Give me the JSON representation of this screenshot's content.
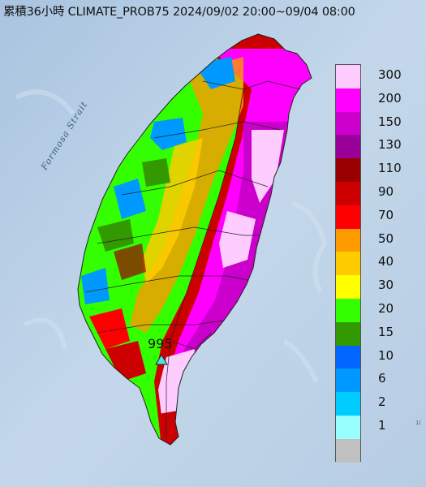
{
  "header": {
    "title": "累積36小時 CLIMATE_PROB75 2024/09/02 20:00~09/04 08:00"
  },
  "map": {
    "sea_label": "Formosa Strait",
    "peak_marker_label": "995",
    "corner_text": "1("
  },
  "legend": {
    "items": [
      {
        "label": "300",
        "color": "#ffccff"
      },
      {
        "label": "200",
        "color": "#ff00ff"
      },
      {
        "label": "150",
        "color": "#cc00cc"
      },
      {
        "label": "130",
        "color": "#990099"
      },
      {
        "label": "110",
        "color": "#990000"
      },
      {
        "label": "90",
        "color": "#cc0000"
      },
      {
        "label": "70",
        "color": "#ff0000"
      },
      {
        "label": "50",
        "color": "#ff9900"
      },
      {
        "label": "40",
        "color": "#ffcc00"
      },
      {
        "label": "30",
        "color": "#ffff00"
      },
      {
        "label": "20",
        "color": "#33ff00"
      },
      {
        "label": "15",
        "color": "#339900"
      },
      {
        "label": "10",
        "color": "#0066ff"
      },
      {
        "label": "6",
        "color": "#0099ff"
      },
      {
        "label": "2",
        "color": "#00ccff"
      },
      {
        "label": "1",
        "color": "#99ffff"
      },
      {
        "label": "",
        "color": "#c0c0c0"
      }
    ]
  }
}
